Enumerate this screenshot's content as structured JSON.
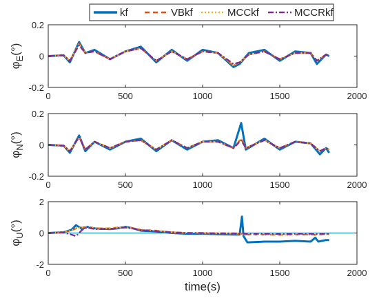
{
  "legend": {
    "position": "top-center",
    "entries": [
      "kf",
      "VBkf",
      "MCCkf",
      "MCCRkf"
    ]
  },
  "colors": {
    "kf": "#0072BD",
    "VBkf": "#D95319",
    "MCCkf": "#EDB120",
    "MCCRkf": "#7E2F8E",
    "axis": "#262626",
    "reference_line": "#0072BD"
  },
  "chart_data": [
    {
      "type": "line",
      "ylabel_base": "φ",
      "ylabel_sub": "E",
      "ylabel_unit": "(°)",
      "xlabel": "",
      "xlim": [
        0,
        2000
      ],
      "ylim": [
        -0.2,
        0.2
      ],
      "xticks": [
        0,
        500,
        1000,
        1500,
        2000
      ],
      "yticks": [
        -0.2,
        0,
        0.2
      ],
      "ytick_labels": [
        "-0.2",
        "0",
        "0.2"
      ],
      "grid": false,
      "x": [
        0,
        100,
        140,
        200,
        240,
        300,
        400,
        500,
        600,
        700,
        800,
        900,
        1000,
        1100,
        1200,
        1240,
        1300,
        1400,
        1500,
        1600,
        1700,
        1740,
        1800,
        1820
      ],
      "series": [
        {
          "name": "kf",
          "values": [
            0,
            0.005,
            -0.04,
            0.09,
            0.02,
            0.04,
            -0.02,
            0.03,
            0.06,
            -0.04,
            0.04,
            -0.03,
            0.04,
            0.02,
            -0.07,
            -0.05,
            0.02,
            0.04,
            -0.03,
            0.03,
            0.02,
            -0.05,
            0.01,
            0
          ]
        },
        {
          "name": "VBkf",
          "values": [
            0,
            0.005,
            -0.03,
            0.08,
            0.02,
            0.03,
            -0.02,
            0.03,
            0.05,
            -0.03,
            0.03,
            -0.02,
            0.03,
            0.02,
            -0.06,
            -0.04,
            0.01,
            0.03,
            -0.02,
            0.02,
            0.02,
            -0.03,
            0.01,
            0
          ]
        },
        {
          "name": "MCCkf",
          "values": [
            0,
            0.005,
            -0.03,
            0.08,
            0.02,
            0.03,
            -0.02,
            0.03,
            0.05,
            -0.03,
            0.03,
            -0.02,
            0.03,
            0.02,
            -0.06,
            -0.04,
            0.01,
            0.03,
            -0.02,
            0.02,
            0.02,
            -0.03,
            0.01,
            0
          ]
        },
        {
          "name": "MCCRkf",
          "values": [
            0,
            0.005,
            -0.03,
            0.07,
            0.02,
            0.03,
            -0.02,
            0.03,
            0.05,
            -0.03,
            0.03,
            -0.02,
            0.03,
            0.02,
            -0.05,
            -0.04,
            0.01,
            0.03,
            -0.02,
            0.02,
            0.02,
            -0.03,
            0.01,
            0
          ]
        }
      ]
    },
    {
      "type": "line",
      "ylabel_base": "φ",
      "ylabel_sub": "N",
      "ylabel_unit": "(°)",
      "xlabel": "",
      "xlim": [
        0,
        2000
      ],
      "ylim": [
        -0.2,
        0.2
      ],
      "xticks": [
        0,
        500,
        1000,
        1500,
        2000
      ],
      "yticks": [
        -0.2,
        0,
        0.2
      ],
      "ytick_labels": [
        "-0.2",
        "0",
        "0.2"
      ],
      "grid": false,
      "x": [
        0,
        100,
        140,
        200,
        240,
        300,
        400,
        500,
        600,
        700,
        800,
        900,
        1000,
        1100,
        1200,
        1250,
        1280,
        1400,
        1500,
        1600,
        1700,
        1760,
        1800,
        1820
      ],
      "series": [
        {
          "name": "kf",
          "values": [
            0,
            -0.005,
            -0.05,
            0.06,
            -0.04,
            0.02,
            -0.03,
            0.02,
            0.04,
            -0.04,
            0.03,
            -0.03,
            0.02,
            0.03,
            -0.02,
            0.14,
            -0.03,
            0.04,
            -0.03,
            0.02,
            0.01,
            -0.06,
            -0.02,
            -0.05
          ]
        },
        {
          "name": "VBkf",
          "values": [
            0,
            -0.005,
            -0.04,
            0.05,
            -0.03,
            0.02,
            -0.02,
            0.02,
            0.03,
            -0.03,
            0.03,
            -0.02,
            0.02,
            0.02,
            -0.02,
            0.04,
            -0.02,
            0.03,
            -0.02,
            0.02,
            0.01,
            -0.04,
            -0.02,
            -0.03
          ]
        },
        {
          "name": "MCCkf",
          "values": [
            0,
            -0.005,
            -0.04,
            0.05,
            -0.03,
            0.02,
            -0.02,
            0.02,
            0.03,
            -0.03,
            0.03,
            -0.02,
            0.02,
            0.02,
            -0.02,
            0.04,
            -0.02,
            0.03,
            -0.02,
            0.02,
            0.01,
            -0.04,
            -0.02,
            -0.03
          ]
        },
        {
          "name": "MCCRkf",
          "values": [
            0,
            -0.005,
            -0.04,
            0.05,
            -0.03,
            0.02,
            -0.02,
            0.02,
            0.03,
            -0.03,
            0.03,
            -0.02,
            0.02,
            0.02,
            -0.02,
            0.03,
            -0.02,
            0.03,
            -0.02,
            0.02,
            0.01,
            -0.04,
            -0.02,
            -0.03
          ]
        }
      ]
    },
    {
      "type": "line",
      "ylabel_base": "φ",
      "ylabel_sub": "U",
      "ylabel_unit": "(°)",
      "xlabel": "time(s)",
      "xlim": [
        0,
        2000
      ],
      "ylim": [
        -2,
        2
      ],
      "xticks": [
        0,
        500,
        1000,
        1500,
        2000
      ],
      "yticks": [
        -2,
        0,
        2
      ],
      "ytick_labels": [
        "-2",
        "0",
        "2"
      ],
      "grid": false,
      "reference_line": 0,
      "x": [
        0,
        100,
        150,
        180,
        220,
        250,
        300,
        400,
        450,
        500,
        550,
        600,
        700,
        800,
        900,
        1000,
        1100,
        1200,
        1240,
        1255,
        1265,
        1290,
        1400,
        1500,
        1600,
        1700,
        1730,
        1750,
        1800,
        1820
      ],
      "series": [
        {
          "name": "kf",
          "values": [
            0,
            0.05,
            0.2,
            0.5,
            0.25,
            0.4,
            0.3,
            0.25,
            0.3,
            0.4,
            0.3,
            0.15,
            0.1,
            0.0,
            -0.05,
            -0.05,
            -0.08,
            -0.1,
            -0.1,
            1.05,
            -0.2,
            -0.6,
            -0.55,
            -0.55,
            -0.5,
            -0.55,
            -0.3,
            -0.55,
            -0.45,
            -0.45
          ]
        },
        {
          "name": "VBkf",
          "values": [
            0,
            0.05,
            0.15,
            0.3,
            0.35,
            0.4,
            0.3,
            0.3,
            0.35,
            0.38,
            0.3,
            0.2,
            0.15,
            0.05,
            0.0,
            -0.02,
            -0.02,
            -0.03,
            -0.05,
            -0.05,
            -0.08,
            -0.1,
            -0.1,
            -0.12,
            -0.1,
            -0.1,
            -0.12,
            -0.1,
            -0.08,
            -0.08
          ]
        },
        {
          "name": "MCCkf",
          "values": [
            0,
            0.05,
            0.15,
            0.3,
            0.35,
            0.4,
            0.3,
            0.3,
            0.35,
            0.38,
            0.3,
            0.2,
            0.15,
            0.05,
            0.0,
            -0.02,
            -0.02,
            -0.03,
            -0.05,
            -0.05,
            -0.08,
            -0.1,
            -0.1,
            -0.12,
            -0.1,
            -0.1,
            -0.12,
            -0.1,
            -0.08,
            -0.08
          ]
        },
        {
          "name": "MCCRkf",
          "values": [
            0,
            0.02,
            -0.1,
            -0.2,
            0.2,
            0.35,
            0.25,
            0.25,
            0.3,
            0.35,
            0.28,
            0.18,
            0.12,
            0.05,
            0.0,
            0.0,
            -0.02,
            -0.02,
            -0.03,
            -0.03,
            -0.05,
            -0.05,
            -0.05,
            -0.06,
            -0.05,
            -0.05,
            -0.06,
            -0.05,
            -0.05,
            -0.05
          ]
        }
      ]
    }
  ]
}
